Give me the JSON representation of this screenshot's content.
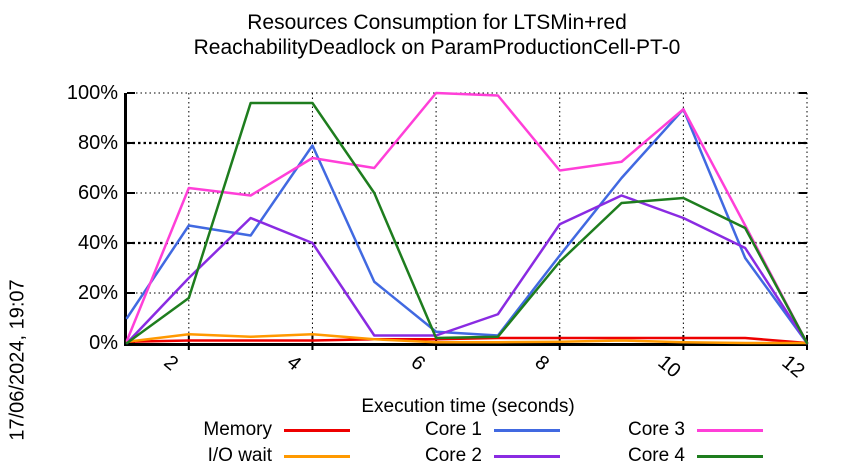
{
  "title": {
    "line1": "Resources Consumption for LTSMin+red",
    "line2": "ReachabilityDeadlock on ParamProductionCell-PT-0"
  },
  "date_stamp": "17/06/2024, 19:07",
  "chart_data": {
    "type": "line",
    "title": "Resources Consumption for LTSMin+red ReachabilityDeadlock on ParamProductionCell-PT-0",
    "xlabel": "Execution time (seconds)",
    "ylabel": "",
    "xlim": [
      1,
      12
    ],
    "ylim": [
      0,
      100
    ],
    "grid": true,
    "legend_position": "bottom",
    "x_ticks": [
      2,
      4,
      6,
      8,
      10,
      12
    ],
    "x_tick_labels": [
      "2",
      "4",
      "6",
      "8",
      "10",
      "12"
    ],
    "y_ticks": [
      0,
      20,
      40,
      60,
      80,
      100
    ],
    "y_tick_labels": [
      "0%",
      "20%",
      "40%",
      "60%",
      "80%",
      "100%"
    ],
    "x": [
      1,
      2,
      3,
      4,
      5,
      6,
      7,
      8,
      9,
      10,
      11,
      12
    ],
    "series": [
      {
        "name": "Memory",
        "color": "#ee0000",
        "values": [
          0.5,
          1,
          1,
          1,
          1.5,
          1.5,
          2,
          2,
          2,
          2,
          2,
          0
        ]
      },
      {
        "name": "I/O wait",
        "color": "#ff9900",
        "values": [
          0.5,
          3.5,
          2.5,
          3.5,
          1.5,
          0.3,
          0.3,
          0.5,
          1,
          0.3,
          0,
          0
        ]
      },
      {
        "name": "Core 1",
        "color": "#4169e1",
        "values": [
          10,
          47,
          43,
          79,
          24.5,
          4.5,
          3,
          35,
          66,
          93.5,
          34,
          0
        ]
      },
      {
        "name": "Core 2",
        "color": "#8a2be2",
        "values": [
          0,
          26,
          50,
          40,
          3,
          3,
          11.5,
          47.5,
          59,
          50,
          38,
          0
        ]
      },
      {
        "name": "Core 3",
        "color": "#ff3fd8",
        "values": [
          1,
          62,
          59,
          74,
          70,
          100,
          99,
          69,
          72.5,
          93.5,
          47,
          0
        ]
      },
      {
        "name": "Core 4",
        "color": "#1e7d1e",
        "values": [
          0,
          18,
          96,
          96,
          60,
          2,
          2.5,
          32.5,
          56,
          58,
          46,
          0
        ]
      }
    ]
  }
}
